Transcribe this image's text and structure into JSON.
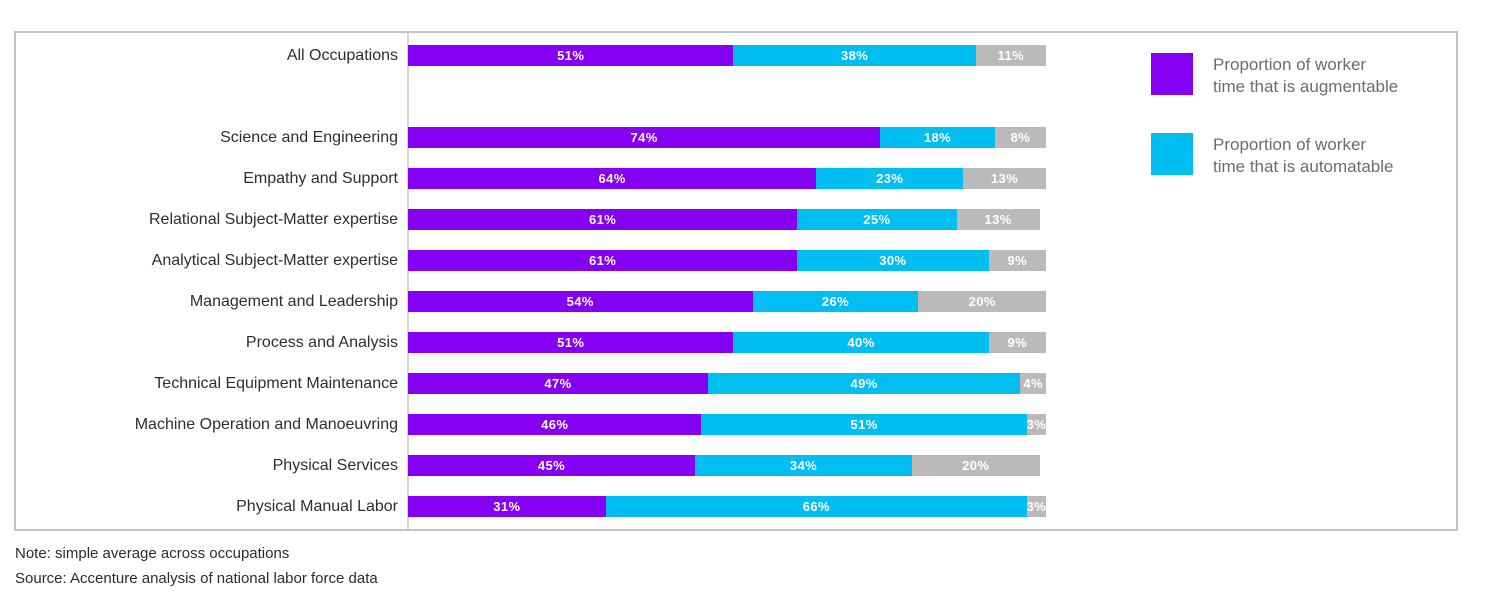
{
  "chart_data": {
    "type": "bar",
    "orientation": "horizontal-stacked",
    "title": "",
    "categories": [
      "All Occupations",
      "Science and Engineering",
      "Empathy and Support",
      "Relational Subject-Matter expertise",
      "Analytical Subject-Matter expertise",
      "Management and Leadership",
      "Process and Analysis",
      "Technical Equipment Maintenance",
      "Machine Operation and Manoeuvring",
      "Physical Services",
      "Physical Manual Labor"
    ],
    "series": [
      {
        "name": "Proportion of worker time that is augmentable",
        "color": "#8500F2",
        "values": [
          51,
          74,
          64,
          61,
          61,
          54,
          51,
          47,
          46,
          45,
          31
        ]
      },
      {
        "name": "Proportion of worker time that is automatable",
        "color": "#00BDF2",
        "values": [
          38,
          18,
          23,
          25,
          30,
          26,
          40,
          49,
          51,
          34,
          66
        ]
      },
      {
        "name": "",
        "color": "#BABABA",
        "values": [
          11,
          8,
          13,
          13,
          9,
          20,
          9,
          4,
          3,
          20,
          3
        ]
      }
    ],
    "value_suffix": "%",
    "xlim": [
      0,
      100
    ],
    "grid": false,
    "legend_position": "top-right",
    "gap_after_first_category": true
  },
  "legend": {
    "items": [
      {
        "swatch_color": "#8500F2",
        "line1": "Proportion of worker",
        "line2": "time that is augmentable"
      },
      {
        "swatch_color": "#00BDF2",
        "line1": "Proportion of worker",
        "line2": "time that is automatable"
      }
    ]
  },
  "footnotes": {
    "note": "Note: simple average across occupations",
    "source": "Source: Accenture analysis of national labor force data"
  }
}
